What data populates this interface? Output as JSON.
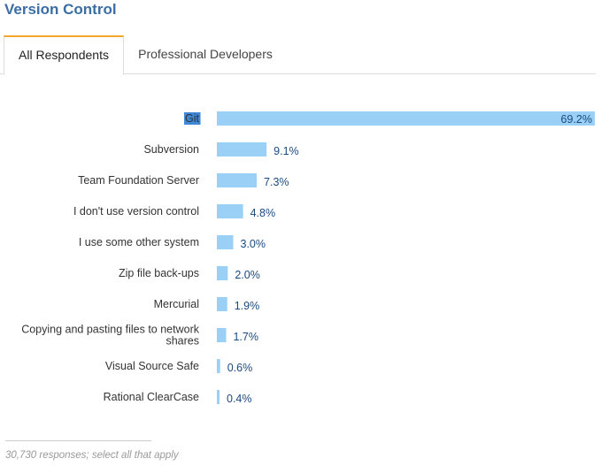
{
  "page": {
    "title": "Version Control",
    "tabs": [
      {
        "label": "All Respondents",
        "active": true
      },
      {
        "label": "Professional Developers",
        "active": false
      }
    ],
    "footer": "30,730 responses; select all that apply"
  },
  "colors": {
    "bar": "#9ad0f5",
    "bar_highlight": "#9ad0f5",
    "selection_bg": "#3e88d8",
    "title": "#3a6ea5",
    "tab_accent": "#f2a72c"
  },
  "chart_data": {
    "type": "bar",
    "orientation": "horizontal",
    "categories": [
      "Git",
      "Subversion",
      "Team Foundation Server",
      "I don't use version control",
      "I use some other system",
      "Zip file back-ups",
      "Mercurial",
      "Copying and pasting files to network shares",
      "Visual Source Safe",
      "Rational ClearCase"
    ],
    "category_lines": [
      [
        "Git"
      ],
      [
        "Subversion"
      ],
      [
        "Team Foundation Server"
      ],
      [
        "I don't use version control"
      ],
      [
        "I use some other system"
      ],
      [
        "Zip file back-ups"
      ],
      [
        "Mercurial"
      ],
      [
        "Copying and pasting files to network",
        "shares"
      ],
      [
        "Visual Source Safe"
      ],
      [
        "Rational ClearCase"
      ]
    ],
    "values": [
      69.2,
      9.1,
      7.3,
      4.8,
      3.0,
      2.0,
      1.9,
      1.7,
      0.6,
      0.4
    ],
    "value_labels": [
      "69.2%",
      "9.1%",
      "7.3%",
      "4.8%",
      "3.0%",
      "2.0%",
      "1.9%",
      "1.7%",
      "0.6%",
      "0.4%"
    ],
    "xlim": [
      0,
      69.2
    ],
    "grid": false,
    "selected_category": "Git"
  }
}
